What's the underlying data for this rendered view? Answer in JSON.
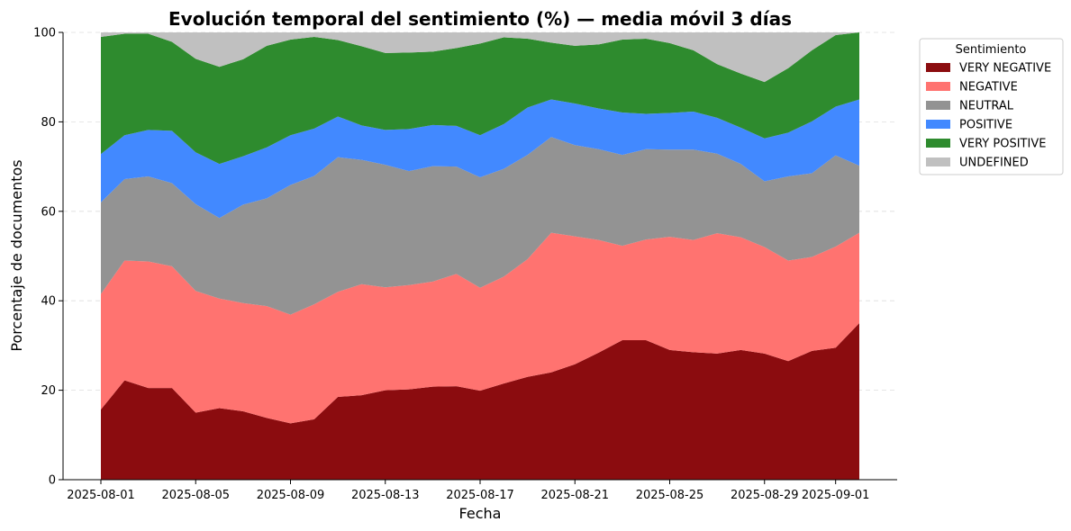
{
  "chart_data": {
    "type": "area",
    "stacked": true,
    "title": "Evolución temporal del sentimiento (%) — media móvil 3 días",
    "xlabel": "Fecha",
    "ylabel": "Porcentaje de documentos",
    "ylim": [
      0,
      100
    ],
    "yticks": [
      0,
      20,
      40,
      60,
      80,
      100
    ],
    "xticks": [
      "2025-08-01",
      "2025-08-05",
      "2025-08-09",
      "2025-08-13",
      "2025-08-17",
      "2025-08-21",
      "2025-08-25",
      "2025-08-29",
      "2025-09-01"
    ],
    "grid": "horizontal dashed",
    "legend_title": "Sentimiento",
    "legend_position": "outside top-right",
    "x": [
      "2025-08-01",
      "2025-08-02",
      "2025-08-03",
      "2025-08-04",
      "2025-08-05",
      "2025-08-06",
      "2025-08-07",
      "2025-08-08",
      "2025-08-09",
      "2025-08-10",
      "2025-08-11",
      "2025-08-12",
      "2025-08-13",
      "2025-08-14",
      "2025-08-15",
      "2025-08-16",
      "2025-08-17",
      "2025-08-18",
      "2025-08-19",
      "2025-08-20",
      "2025-08-21",
      "2025-08-22",
      "2025-08-23",
      "2025-08-24",
      "2025-08-25",
      "2025-08-26",
      "2025-08-27",
      "2025-08-28",
      "2025-08-29",
      "2025-08-30",
      "2025-08-31",
      "2025-09-01",
      "2025-09-02"
    ],
    "series": [
      {
        "name": "VERY NEGATIVE",
        "color": "#8b0c0f",
        "values": [
          15.7,
          22.2,
          20.5,
          20.5,
          15.0,
          16.0,
          15.3,
          13.8,
          12.6,
          13.5,
          18.5,
          18.9,
          20.0,
          20.2,
          20.8,
          20.9,
          19.9,
          21.5,
          23.0,
          24.0,
          25.8,
          28.4,
          31.2,
          31.2,
          29.0,
          28.5,
          28.2,
          29.0,
          28.2,
          26.5,
          28.8,
          29.5,
          35.0
        ]
      },
      {
        "name": "NEGATIVE",
        "color": "#ff7370",
        "values": [
          25.8,
          26.8,
          28.3,
          27.2,
          27.2,
          24.5,
          24.2,
          25.0,
          24.3,
          25.7,
          23.5,
          24.8,
          23.0,
          23.3,
          23.5,
          25.1,
          23.0,
          23.9,
          26.3,
          31.2,
          28.6,
          25.2,
          21.1,
          22.5,
          25.3,
          25.1,
          26.9,
          25.2,
          23.8,
          22.5,
          21.0,
          22.6,
          20.2
        ]
      },
      {
        "name": "NEUTRAL",
        "color": "#939393",
        "values": [
          20.5,
          18.2,
          19.0,
          18.6,
          19.4,
          18.0,
          22.0,
          24.1,
          29.0,
          28.7,
          30.1,
          27.8,
          27.4,
          25.5,
          25.8,
          24.0,
          24.7,
          24.1,
          23.3,
          21.4,
          20.4,
          20.3,
          20.3,
          20.2,
          19.5,
          20.2,
          17.8,
          16.4,
          14.7,
          18.8,
          18.7,
          20.4,
          15.0
        ]
      },
      {
        "name": "POSITIVE",
        "color": "#4289ff",
        "values": [
          10.8,
          9.8,
          10.4,
          11.7,
          11.6,
          12.1,
          10.8,
          11.4,
          11.1,
          10.6,
          9.1,
          7.7,
          7.8,
          9.4,
          9.2,
          9.1,
          9.4,
          10.0,
          10.6,
          8.4,
          9.3,
          9.1,
          9.5,
          7.9,
          8.2,
          8.5,
          8.0,
          8.1,
          9.6,
          9.8,
          11.6,
          10.9,
          14.8
        ]
      },
      {
        "name": "VERY POSITIVE",
        "color": "#2e8b2e",
        "values": [
          26.2,
          22.7,
          21.5,
          19.9,
          20.9,
          21.7,
          21.7,
          22.7,
          21.4,
          20.5,
          17.1,
          17.7,
          17.2,
          17.1,
          16.4,
          17.4,
          20.5,
          19.4,
          15.4,
          12.7,
          12.9,
          14.3,
          16.3,
          16.8,
          15.6,
          13.7,
          12.0,
          12.1,
          12.6,
          14.4,
          15.9,
          16.0,
          15.0
        ]
      },
      {
        "name": "UNDEFINED",
        "color": "#c0c0c0",
        "values": [
          1.0,
          0.3,
          0.3,
          2.1,
          5.9,
          7.7,
          6.0,
          3.0,
          1.6,
          1.0,
          1.7,
          3.1,
          4.6,
          4.5,
          4.3,
          3.5,
          2.5,
          1.1,
          1.4,
          2.3,
          3.0,
          2.7,
          1.6,
          1.4,
          2.4,
          4.0,
          7.1,
          9.2,
          11.1,
          8.0,
          4.0,
          0.6,
          0.0
        ]
      }
    ]
  }
}
